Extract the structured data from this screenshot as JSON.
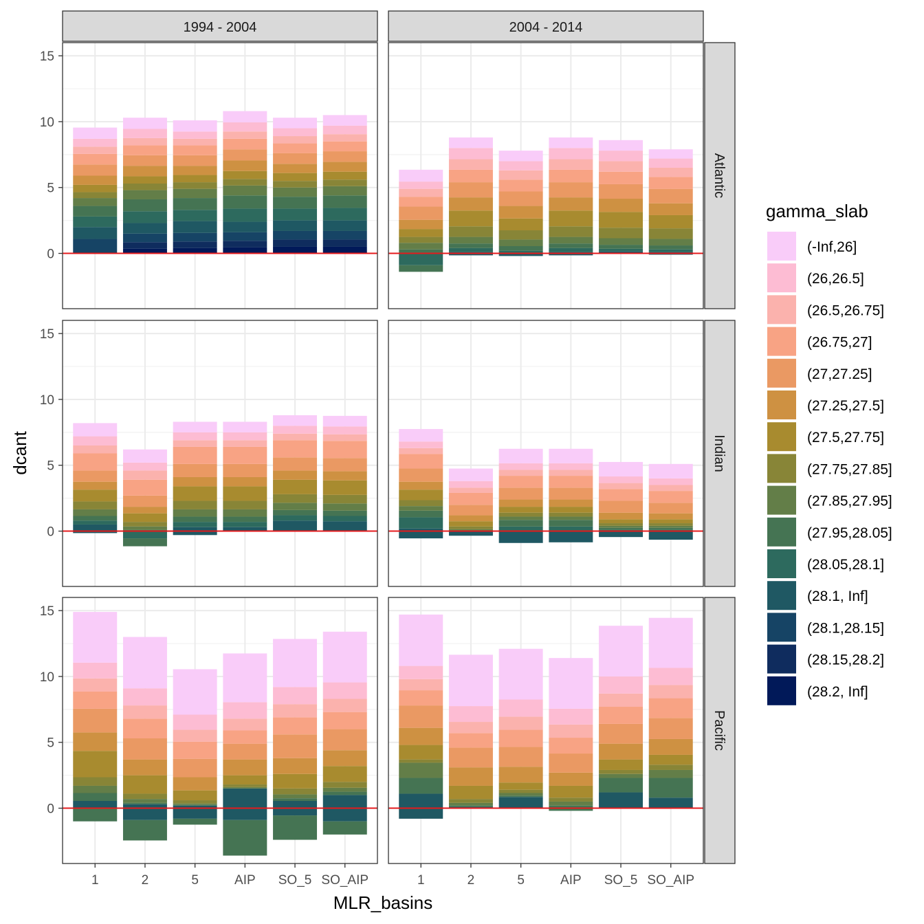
{
  "chart_data": {
    "type": "bar",
    "stacked": true,
    "grid": true,
    "xlabel": "MLR_basins",
    "ylabel": "dcant",
    "ylim": [
      -4.2,
      16.0
    ],
    "yticks": [
      0,
      5,
      10,
      15
    ],
    "categories": [
      "1",
      "2",
      "5",
      "AIP",
      "SO_5",
      "SO_AIP"
    ],
    "column_strips": [
      "1994 - 2004",
      "2004 - 2014"
    ],
    "row_strips": [
      "Atlantic",
      "Indian",
      "Pacific"
    ],
    "reference_line": {
      "y": 0,
      "color": "#E41A1C"
    },
    "legend": {
      "title": "gamma_slab",
      "position": "right",
      "entries": [
        "(-Inf,26]",
        "(26,26.5]",
        "(26.5,26.75]",
        "(26.75,27]",
        "(27,27.25]",
        "(27.25,27.5]",
        "(27.5,27.75]",
        "(27.75,27.85]",
        "(27.85,27.95]",
        "(27.95,28.05]",
        "(28.05,28.1]",
        "(28.1, Inf]",
        "(28.1,28.15]",
        "(28.15,28.2]",
        "(28.2, Inf]"
      ],
      "colors": [
        "#F9CCF9",
        "#FDBCD3",
        "#FBB2AD",
        "#F8A384",
        "#EA9963",
        "#CE9142",
        "#A88B2F",
        "#888537",
        "#637E48",
        "#457453",
        "#2D6A5E",
        "#1F5863",
        "#164465",
        "#0F2C5E",
        "#011959"
      ]
    },
    "panels": [
      {
        "column": "1994 - 2004",
        "row": "Atlantic",
        "bars": [
          {
            "category": "1",
            "pos": [
              0,
              0,
              0,
              0,
              0,
              0,
              0,
              0,
              0,
              0,
              0,
              0,
              0,
              0,
              0,
              0,
              0,
              0,
              0,
              0,
              0,
              0,
              0,
              0,
              0,
              0,
              0,
              0,
              0,
              0
            ],
            "segments": [
              [
                0.85,
                0.6
              ],
              [
                0.55,
                0.6
              ],
              [
                0.8,
                0.6
              ],
              [
                0.85,
                0.6
              ],
              [
                0.7,
                0.6
              ],
              [
                0.55,
                0.5
              ],
              [
                0.45,
                0.6
              ],
              [
                0.6,
                0.6
              ],
              [
                0.8,
                0.9
              ],
              [
                0.8,
                1.5
              ],
              [
                0.9,
                1.3
              ],
              [
                1.1,
                1.2
              ],
              [
                0,
                0
              ],
              [
                0,
                0
              ],
              [
                0,
                0
              ]
            ],
            "neg": [
              0,
              0,
              0,
              0,
              0,
              0,
              0,
              0,
              0,
              0,
              0,
              0,
              0,
              0,
              0
            ]
          }
        ]
      }
    ]
  }
}
